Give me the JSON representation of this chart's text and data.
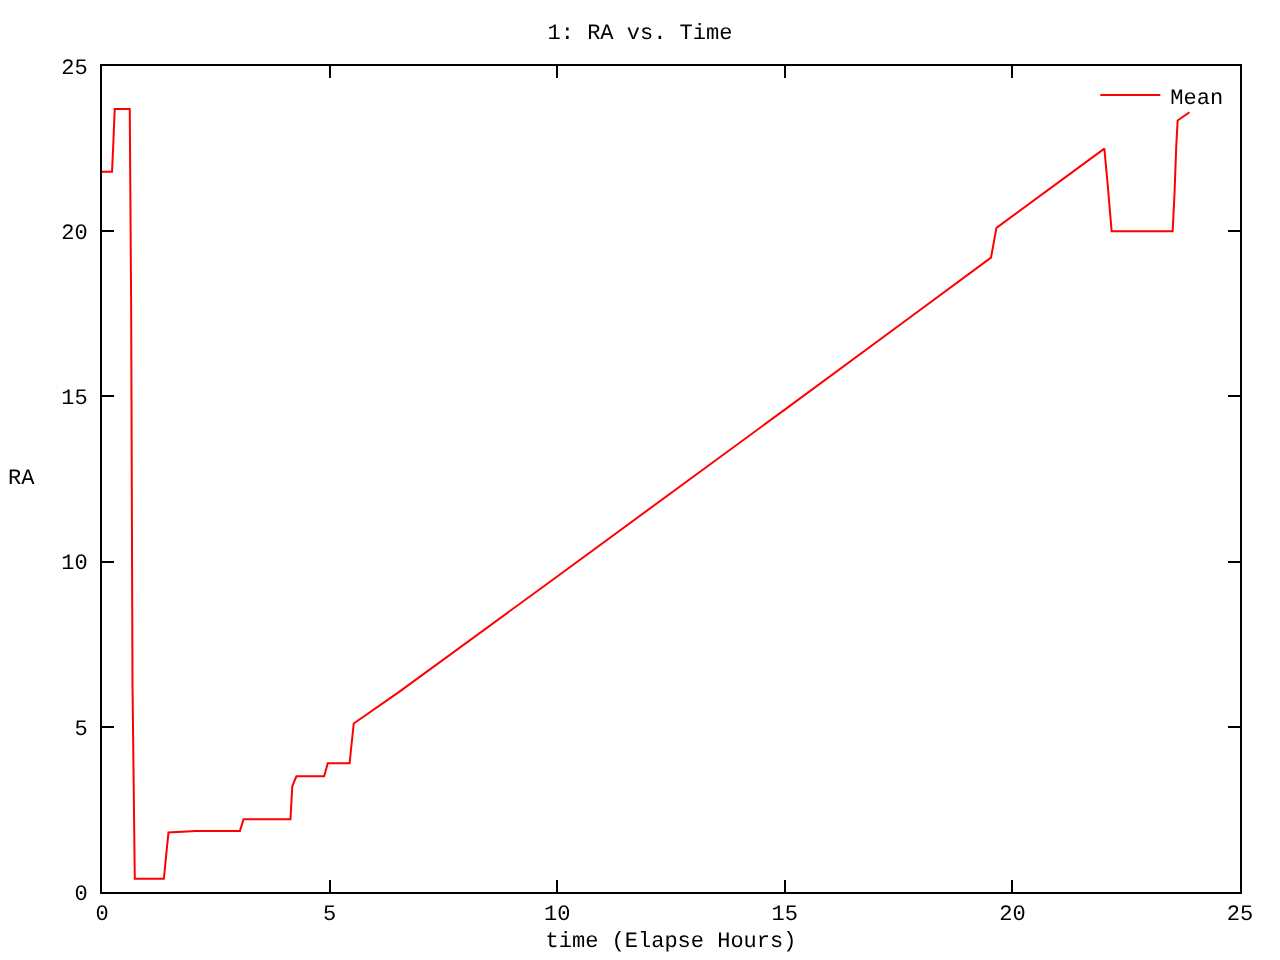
{
  "chart_data": {
    "type": "line",
    "title": "1: RA vs. Time",
    "xlabel": "time (Elapse Hours)",
    "ylabel": "RA",
    "x": [
      0,
      0.22,
      0.25,
      0.28,
      0.61,
      0.64,
      0.67,
      0.72,
      1.36,
      1.38,
      1.46,
      2.06,
      3.03,
      3.11,
      4.14,
      4.18,
      4.27,
      4.88,
      4.96,
      5.44,
      5.53,
      6.52,
      10,
      15,
      17.71,
      19.53,
      19.65,
      22.02,
      22.1,
      22.18,
      23.52,
      23.56,
      23.6,
      23.63,
      23.89
    ],
    "series": [
      {
        "name": "Mean",
        "color": "#ff0000",
        "values": [
          21.8,
          21.8,
          22.7,
          23.7,
          23.7,
          17.8,
          6.3,
          0.4,
          0.4,
          0.7,
          1.8,
          1.85,
          1.85,
          2.2,
          2.2,
          3.2,
          3.5,
          3.5,
          3.9,
          3.9,
          5.1,
          6.05,
          9.55,
          14.6,
          17.35,
          19.2,
          20.1,
          22.5,
          21.3,
          20,
          20,
          21.1,
          22.6,
          23.35,
          23.6
        ]
      }
    ],
    "xlim": [
      0,
      25
    ],
    "ylim": [
      0,
      25
    ],
    "xticks": [
      0,
      5,
      10,
      15,
      20,
      25
    ],
    "yticks": [
      0,
      5,
      10,
      15,
      20,
      25
    ],
    "grid": false,
    "legend": "top right",
    "marker": "none",
    "line_style": "solid"
  }
}
